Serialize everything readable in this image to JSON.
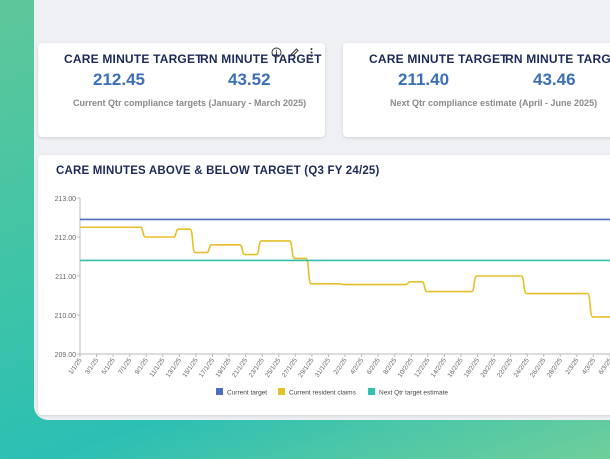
{
  "cards": [
    {
      "left": {
        "label": "CARE MINUTE TARGET",
        "value": "212.45"
      },
      "right": {
        "label": "RN MINUTE TARGET",
        "value": "43.52"
      },
      "caption": "Current Qtr compliance targets (January - March 2025)"
    },
    {
      "left": {
        "label": "CARE MINUTE TARGET",
        "value": "211.40"
      },
      "right": {
        "label": "RN MINUTE TARGET",
        "value": "43.46"
      },
      "caption": "Next Qtr compliance estimate (April - June 2025)"
    }
  ],
  "card_icons": [
    "info-icon",
    "edit-pencil-icon",
    "more-vertical-icon"
  ],
  "chart_title": "CARE MINUTES ABOVE & BELOW TARGET (Q3 FY 24/25)",
  "chart_data": {
    "type": "line",
    "ylim": [
      209,
      213
    ],
    "yticks": [
      "213.00",
      "212.00",
      "211.00",
      "210.00",
      "209.00"
    ],
    "x": [
      "1/1/25",
      "3/1/25",
      "5/1/25",
      "7/1/25",
      "9/1/25",
      "11/1/25",
      "13/1/25",
      "15/1/25",
      "17/1/25",
      "19/1/25",
      "21/1/25",
      "23/1/25",
      "25/1/25",
      "27/1/25",
      "29/1/25",
      "31/1/25",
      "2/2/25",
      "4/2/25",
      "6/2/25",
      "8/2/25",
      "10/2/25",
      "12/2/25",
      "14/2/25",
      "16/2/25",
      "18/2/25",
      "20/2/25",
      "22/2/25",
      "24/2/25",
      "26/2/25",
      "28/2/25",
      "2/3/25",
      "4/3/25",
      "6/3/25"
    ],
    "series": [
      {
        "name": "Current target",
        "color": "#4a6fbe",
        "values": [
          212.45,
          212.45,
          212.45,
          212.45,
          212.45,
          212.45,
          212.45,
          212.45,
          212.45,
          212.45,
          212.45,
          212.45,
          212.45,
          212.45,
          212.45,
          212.45,
          212.45,
          212.45,
          212.45,
          212.45,
          212.45,
          212.45,
          212.45,
          212.45,
          212.45,
          212.45,
          212.45,
          212.45,
          212.45,
          212.45,
          212.45,
          212.45,
          212.45
        ]
      },
      {
        "name": "Current resident claims",
        "color": "#e6c02a",
        "values": [
          212.25,
          212.25,
          212.25,
          212.25,
          212.0,
          212.0,
          212.2,
          211.6,
          211.8,
          211.8,
          211.55,
          211.9,
          211.9,
          211.45,
          210.8,
          210.8,
          210.78,
          210.78,
          210.78,
          210.78,
          210.85,
          210.6,
          210.6,
          210.6,
          211.0,
          211.0,
          211.0,
          210.55,
          210.55,
          210.55,
          210.55,
          209.95,
          209.95
        ]
      },
      {
        "name": "Next Qtr target estimate",
        "color": "#35bfae",
        "values": [
          211.4,
          211.4,
          211.4,
          211.4,
          211.4,
          211.4,
          211.4,
          211.4,
          211.4,
          211.4,
          211.4,
          211.4,
          211.4,
          211.4,
          211.4,
          211.4,
          211.4,
          211.4,
          211.4,
          211.4,
          211.4,
          211.4,
          211.4,
          211.4,
          211.4,
          211.4,
          211.4,
          211.4,
          211.4,
          211.4,
          211.4,
          211.4,
          211.4
        ]
      }
    ],
    "legend": [
      "Current target",
      "Current resident claims",
      "Next Qtr target estimate"
    ],
    "legend_position": "bottom"
  }
}
